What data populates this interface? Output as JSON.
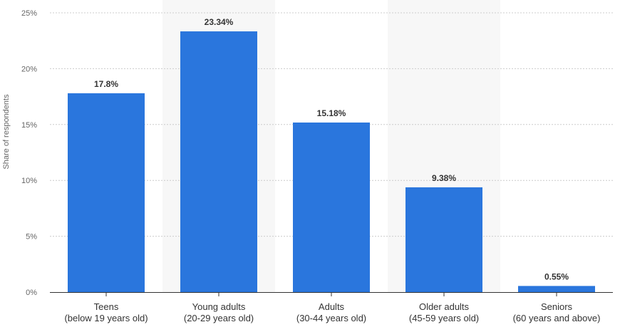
{
  "chart_data": {
    "type": "bar",
    "title": "",
    "xlabel": "",
    "ylabel": "Share of respondents",
    "ylim": [
      0,
      25
    ],
    "yticks": [
      0,
      5,
      10,
      15,
      20,
      25
    ],
    "ytick_labels": [
      "0%",
      "5%",
      "10%",
      "15%",
      "20%",
      "25%"
    ],
    "categories": [
      {
        "line1": "Teens",
        "line2": "(below 19 years old)"
      },
      {
        "line1": "Young adults",
        "line2": "(20-29 years old)"
      },
      {
        "line1": "Adults",
        "line2": "(30-44 years old)"
      },
      {
        "line1": "Older adults",
        "line2": "(45-59 years old)"
      },
      {
        "line1": "Seniors",
        "line2": "(60 years and above)"
      }
    ],
    "values": [
      17.8,
      23.34,
      15.18,
      9.38,
      0.55
    ],
    "value_labels": [
      "17.8%",
      "23.34%",
      "15.18%",
      "9.38%",
      "0.55%"
    ],
    "bar_color": "#2a76dd",
    "alt_band_color": "#f7f7f7",
    "grid": true,
    "legend": "none"
  }
}
